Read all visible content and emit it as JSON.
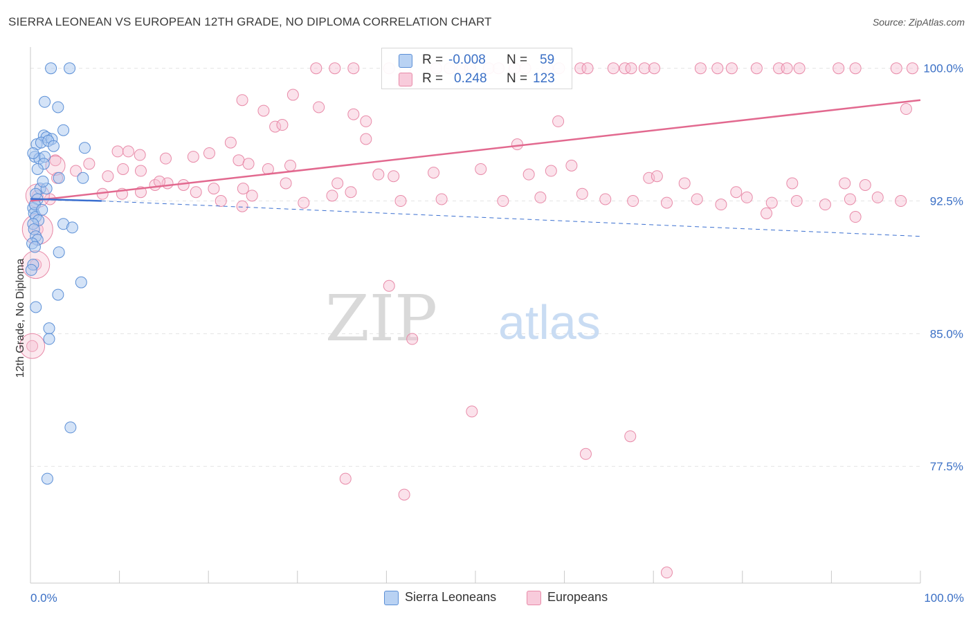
{
  "header": {
    "title": "SIERRA LEONEAN VS EUROPEAN 12TH GRADE, NO DIPLOMA CORRELATION CHART",
    "source": "Source: ZipAtlas.com"
  },
  "watermark": {
    "zip": "ZIP",
    "atlas": "atlas"
  },
  "legend_top": {
    "rows": [
      {
        "r_label": "R =",
        "r_value": "-0.008",
        "n_label": "N =",
        "n_value": "59"
      },
      {
        "r_label": "R =",
        "r_value": "0.248",
        "n_label": "N =",
        "n_value": "123"
      }
    ]
  },
  "legend_bottom": {
    "items": [
      "Sierra Leoneans",
      "Europeans"
    ]
  },
  "colors": {
    "blue_fill": "#a9c8f0",
    "blue_stroke": "#5b8fd6",
    "blue_line": "#3a6fd0",
    "pink_fill": "#f6bfd2",
    "pink_stroke": "#e88aa8",
    "pink_line": "#e2698f",
    "tick_label": "#3a6fc5",
    "grid": "#e4e4e4"
  },
  "chart_data": {
    "type": "scatter",
    "title": "SIERRA LEONEAN VS EUROPEAN 12TH GRADE, NO DIPLOMA CORRELATION CHART",
    "xlabel": "",
    "ylabel": "12th Grade, No Diploma",
    "xlim": [
      0,
      100
    ],
    "ylim": [
      70.9,
      101.2
    ],
    "x_tick_labels": [
      "0.0%",
      "100.0%"
    ],
    "y_ticks": [
      100.0,
      92.5,
      85.0,
      77.5
    ],
    "y_tick_labels": [
      "100.0%",
      "92.5%",
      "85.0%",
      "77.5%"
    ],
    "grid": true,
    "series": [
      {
        "name": "Sierra Leoneans",
        "r": -0.008,
        "n": 59,
        "trend": {
          "x": [
            0,
            8
          ],
          "y": [
            92.62,
            92.5
          ],
          "dashed_extension": {
            "x": [
              8,
              100
            ],
            "y": [
              92.5,
              90.5
            ]
          }
        },
        "points": [
          [
            2.3,
            100.0
          ],
          [
            4.4,
            100.0
          ],
          [
            1.6,
            98.1
          ],
          [
            3.1,
            97.8
          ],
          [
            1.5,
            96.2
          ],
          [
            3.7,
            96.5
          ],
          [
            1.8,
            96.1
          ],
          [
            2.4,
            96.0
          ],
          [
            0.7,
            95.7
          ],
          [
            1.2,
            95.8
          ],
          [
            2.0,
            95.9
          ],
          [
            6.1,
            95.5
          ],
          [
            0.5,
            95.0
          ],
          [
            1.0,
            94.9
          ],
          [
            1.6,
            95.0
          ],
          [
            1.5,
            94.6
          ],
          [
            3.2,
            93.8
          ],
          [
            5.9,
            93.8
          ],
          [
            1.1,
            93.2
          ],
          [
            1.8,
            93.2
          ],
          [
            0.6,
            92.9
          ],
          [
            0.8,
            92.6
          ],
          [
            0.3,
            92.1
          ],
          [
            0.4,
            91.8
          ],
          [
            0.6,
            91.6
          ],
          [
            0.9,
            91.4
          ],
          [
            0.3,
            91.2
          ],
          [
            3.7,
            91.2
          ],
          [
            4.7,
            91.0
          ],
          [
            0.4,
            90.9
          ],
          [
            0.6,
            90.5
          ],
          [
            0.8,
            90.3
          ],
          [
            0.2,
            90.1
          ],
          [
            0.5,
            89.9
          ],
          [
            3.2,
            89.6
          ],
          [
            0.3,
            88.9
          ],
          [
            0.1,
            88.6
          ],
          [
            5.7,
            87.9
          ],
          [
            3.1,
            87.2
          ],
          [
            0.6,
            86.5
          ],
          [
            2.1,
            85.3
          ],
          [
            2.1,
            84.7
          ],
          [
            4.5,
            79.7
          ],
          [
            1.9,
            76.8
          ],
          [
            0.5,
            92.3
          ],
          [
            1.3,
            92.0
          ],
          [
            0.8,
            94.3
          ],
          [
            2.6,
            95.6
          ],
          [
            1.4,
            93.6
          ],
          [
            0.3,
            95.2
          ]
        ]
      },
      {
        "name": "Europeans",
        "r": 0.248,
        "n": 123,
        "trend": {
          "x": [
            0,
            100
          ],
          "y": [
            92.5,
            98.2
          ]
        },
        "points": [
          [
            32.1,
            100.0
          ],
          [
            34.2,
            100.0
          ],
          [
            36.3,
            100.0
          ],
          [
            40.3,
            100.0
          ],
          [
            42.1,
            100.0
          ],
          [
            45.6,
            100.0
          ],
          [
            47.1,
            100.0
          ],
          [
            48.5,
            100.0
          ],
          [
            49.4,
            100.0
          ],
          [
            51.5,
            100.0
          ],
          [
            52.6,
            100.0
          ],
          [
            54.4,
            100.0
          ],
          [
            55.6,
            100.0
          ],
          [
            58.1,
            100.0
          ],
          [
            59.4,
            100.0
          ],
          [
            61.8,
            100.0
          ],
          [
            62.6,
            100.0
          ],
          [
            65.5,
            100.0
          ],
          [
            66.8,
            100.0
          ],
          [
            67.5,
            100.0
          ],
          [
            69.0,
            100.0
          ],
          [
            70.1,
            100.0
          ],
          [
            75.3,
            100.0
          ],
          [
            77.2,
            100.0
          ],
          [
            78.8,
            100.0
          ],
          [
            81.6,
            100.0
          ],
          [
            84.1,
            100.0
          ],
          [
            85.0,
            100.0
          ],
          [
            86.4,
            100.0
          ],
          [
            90.8,
            100.0
          ],
          [
            92.7,
            100.0
          ],
          [
            97.3,
            100.0
          ],
          [
            99.1,
            100.0
          ],
          [
            41.8,
            99.2
          ],
          [
            23.8,
            98.2
          ],
          [
            29.5,
            98.5
          ],
          [
            26.2,
            97.6
          ],
          [
            32.4,
            97.8
          ],
          [
            36.3,
            97.4
          ],
          [
            37.7,
            97.0
          ],
          [
            59.3,
            97.0
          ],
          [
            27.5,
            96.7
          ],
          [
            28.3,
            96.8
          ],
          [
            37.7,
            96.0
          ],
          [
            22.5,
            95.8
          ],
          [
            54.7,
            95.7
          ],
          [
            98.4,
            97.7
          ],
          [
            9.8,
            95.3
          ],
          [
            11.0,
            95.3
          ],
          [
            12.3,
            95.1
          ],
          [
            20.1,
            95.2
          ],
          [
            2.8,
            94.8
          ],
          [
            6.6,
            94.6
          ],
          [
            10.4,
            94.3
          ],
          [
            12.4,
            94.2
          ],
          [
            15.2,
            94.9
          ],
          [
            18.3,
            95.0
          ],
          [
            23.4,
            94.8
          ],
          [
            24.5,
            94.6
          ],
          [
            26.7,
            94.3
          ],
          [
            29.2,
            94.5
          ],
          [
            39.1,
            94.0
          ],
          [
            40.8,
            93.9
          ],
          [
            45.3,
            94.1
          ],
          [
            50.6,
            94.3
          ],
          [
            56.0,
            94.0
          ],
          [
            58.5,
            94.2
          ],
          [
            60.8,
            94.5
          ],
          [
            69.5,
            93.8
          ],
          [
            70.4,
            93.9
          ],
          [
            73.5,
            93.5
          ],
          [
            79.3,
            93.0
          ],
          [
            85.6,
            93.5
          ],
          [
            91.5,
            93.5
          ],
          [
            93.8,
            93.4
          ],
          [
            5.1,
            94.2
          ],
          [
            3.0,
            93.8
          ],
          [
            8.7,
            93.9
          ],
          [
            14.0,
            93.4
          ],
          [
            15.4,
            93.5
          ],
          [
            20.6,
            93.2
          ],
          [
            23.9,
            93.2
          ],
          [
            28.7,
            93.5
          ],
          [
            34.5,
            93.5
          ],
          [
            0.8,
            92.8
          ],
          [
            2.2,
            92.6
          ],
          [
            8.1,
            92.9
          ],
          [
            10.3,
            92.9
          ],
          [
            12.4,
            93.0
          ],
          [
            14.5,
            93.6
          ],
          [
            17.2,
            93.4
          ],
          [
            18.6,
            93.0
          ],
          [
            21.4,
            92.5
          ],
          [
            23.8,
            92.2
          ],
          [
            24.9,
            92.8
          ],
          [
            30.7,
            92.4
          ],
          [
            33.9,
            92.8
          ],
          [
            36.0,
            93.0
          ],
          [
            41.6,
            92.5
          ],
          [
            46.2,
            92.6
          ],
          [
            53.1,
            92.5
          ],
          [
            57.3,
            92.7
          ],
          [
            62.0,
            92.9
          ],
          [
            64.6,
            92.6
          ],
          [
            67.7,
            92.5
          ],
          [
            71.5,
            92.4
          ],
          [
            74.9,
            92.6
          ],
          [
            77.6,
            92.3
          ],
          [
            80.5,
            92.7
          ],
          [
            83.3,
            92.4
          ],
          [
            86.1,
            92.5
          ],
          [
            89.3,
            92.3
          ],
          [
            92.1,
            92.6
          ],
          [
            95.2,
            92.7
          ],
          [
            97.8,
            92.5
          ],
          [
            0.8,
            90.9
          ],
          [
            0.6,
            88.9
          ],
          [
            0.2,
            84.3
          ],
          [
            42.9,
            84.7
          ],
          [
            40.3,
            87.7
          ],
          [
            49.6,
            80.6
          ],
          [
            67.4,
            79.2
          ],
          [
            62.4,
            78.2
          ],
          [
            35.4,
            76.8
          ],
          [
            42.0,
            75.9
          ],
          [
            71.5,
            71.5
          ],
          [
            92.7,
            91.6
          ],
          [
            82.7,
            91.8
          ]
        ]
      }
    ]
  }
}
